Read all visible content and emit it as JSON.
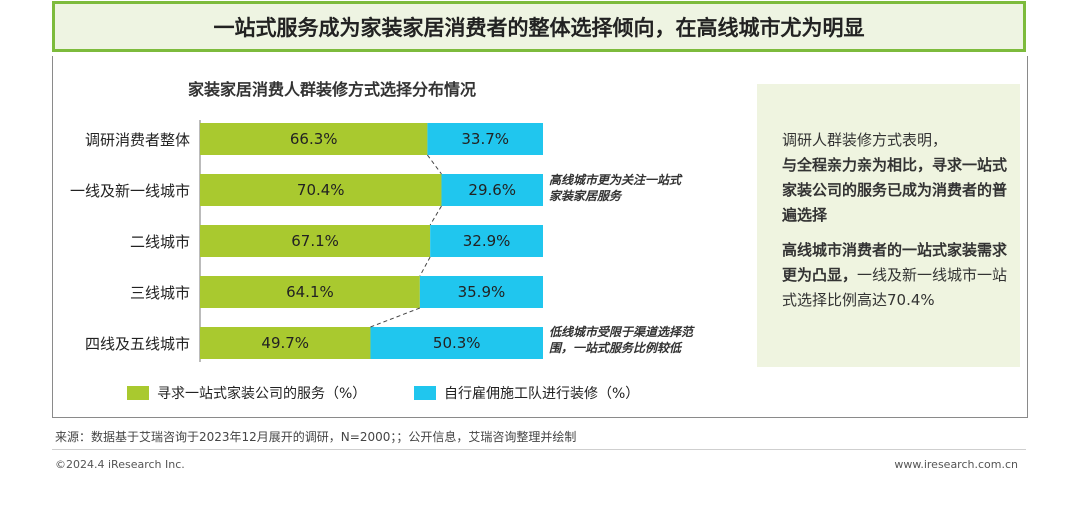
{
  "header": {
    "title": "一站式服务成为家装家居消费者的整体选择倾向，在高线城市尤为明显"
  },
  "chart_data": {
    "type": "bar",
    "stacked": true,
    "orientation": "horizontal",
    "percent_stacked": true,
    "title": "家装家居消费人群装修方式选择分布情况",
    "categories": [
      "调研消费者整体",
      "一线及新一线城市",
      "二线城市",
      "三线城市",
      "四线及五线城市"
    ],
    "series": [
      {
        "name": "寻求一站式家装公司的服务（%）",
        "values": [
          66.3,
          70.4,
          67.1,
          64.1,
          49.7
        ],
        "labels": [
          "66.3%",
          "70.4%",
          "67.1%",
          "64.1%",
          "49.7%"
        ],
        "color": "#a9c92f"
      },
      {
        "name": "自行雇佣施工队进行装修（%）",
        "values": [
          33.7,
          29.6,
          32.9,
          35.9,
          50.3
        ],
        "labels": [
          "33.7%",
          "29.6%",
          "32.9%",
          "35.9%",
          "50.3%"
        ],
        "color": "#20c6ee"
      }
    ],
    "xlim": [
      0,
      100
    ],
    "legend": "bottom",
    "grid": false,
    "annotations": [
      "高线城市更为关注一站式家装家居服务",
      "低线城市受限于渠道选择范围，一站式服务比例较低"
    ]
  },
  "annotations_display": {
    "high": [
      "高线城市更为关注一站式",
      "家装家居服务"
    ],
    "low": [
      "低线城市受限于渠道选择范",
      "围，一站式服务比例较低"
    ]
  },
  "legend": {
    "item1": "寻求一站式家装公司的服务（%）",
    "item2": "自行雇佣施工队进行装修（%）"
  },
  "panel": {
    "p1_line1": "调研人群装修方式表明，",
    "p1_bold": "与全程亲力亲为相比，寻求一站式家装公司的服务已成为消费者的普遍选择",
    "p2_bold": "高线城市消费者的一站式家装需求更为凸显，",
    "p2_rest": "一线及新一线城市一站式选择比例高达70.4%"
  },
  "footer": {
    "source": "来源：数据基于艾瑞咨询于2023年12月展开的调研，N=2000；；公开信息，艾瑞咨询整理并绘制",
    "copyright": "©2024.4 iResearch Inc.",
    "website": "www.iresearch.com.cn"
  }
}
